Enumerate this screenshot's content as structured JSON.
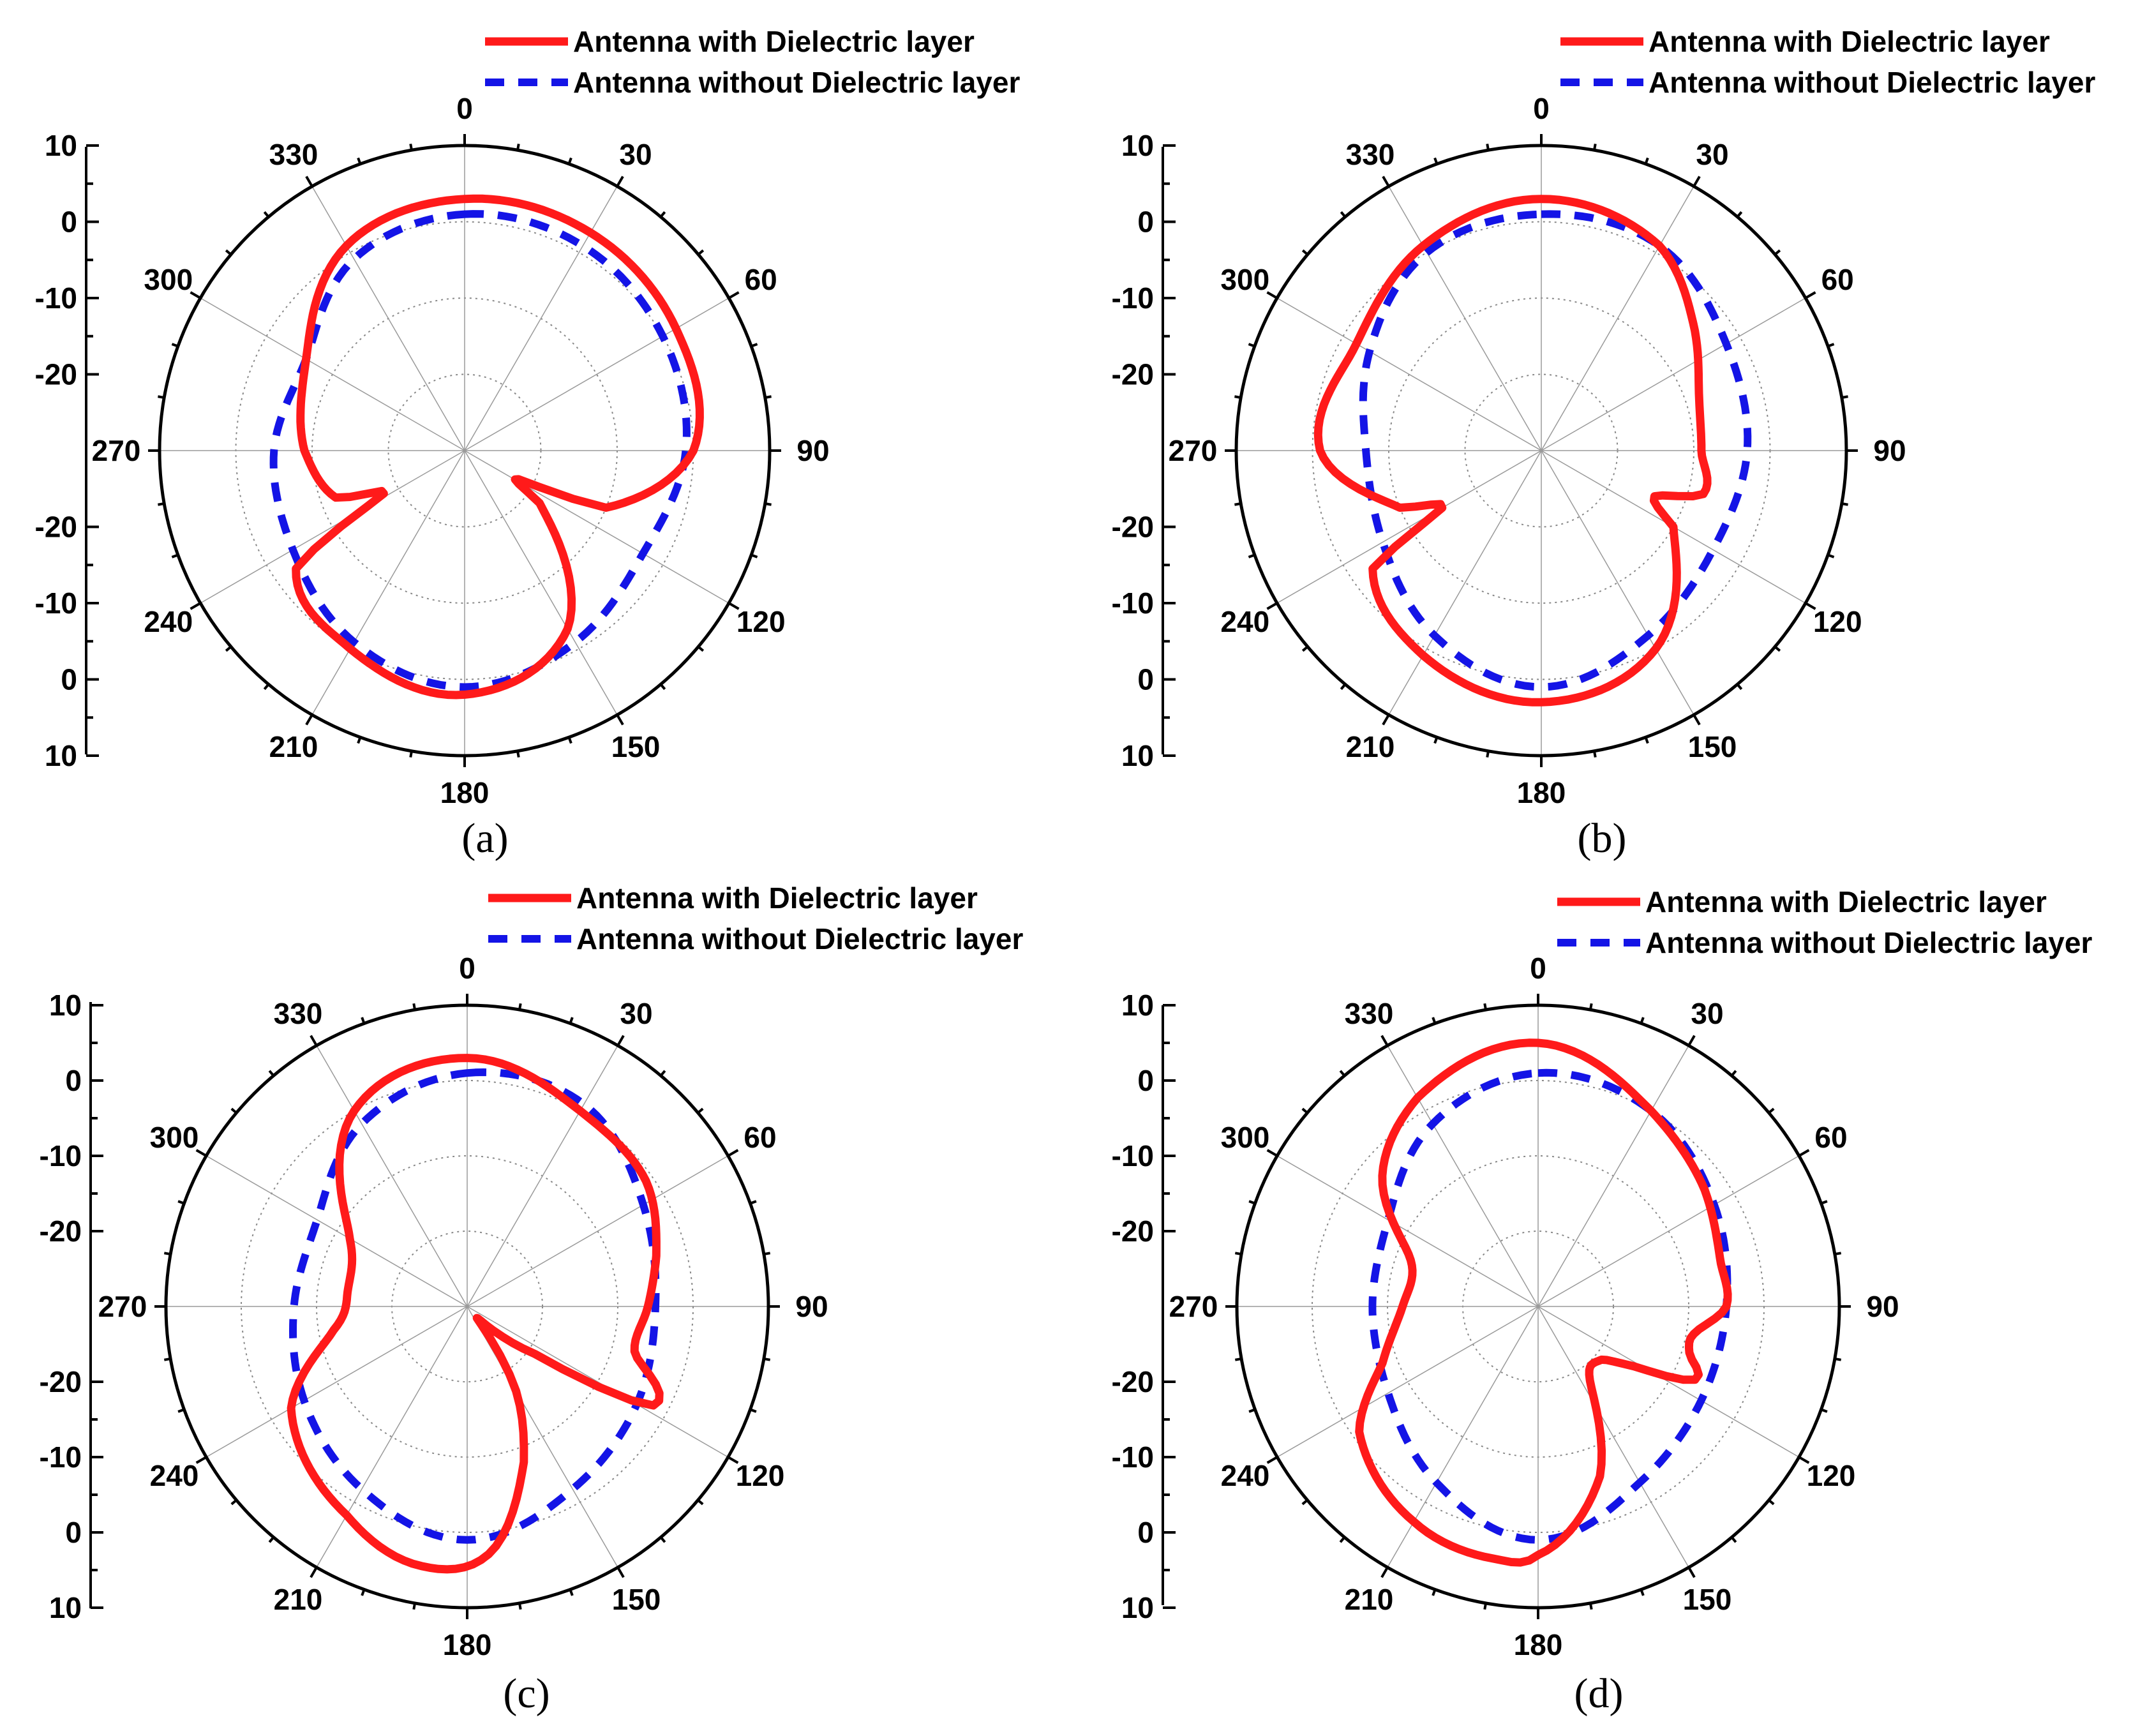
{
  "figure": {
    "legend": {
      "with": "Antenna with Dielectric layer",
      "without": "Antenna without Dielectric layer"
    },
    "colors": {
      "with": "#ff1a1a",
      "without": "#1414e6"
    }
  },
  "chart_data": [
    {
      "type": "polar-line",
      "panel_label": "(a)",
      "angle_ticks": [
        "0",
        "30",
        "60",
        "90",
        "120",
        "150",
        "180",
        "210",
        "240",
        "270",
        "300",
        "330"
      ],
      "radial_axis_labels": [
        "10",
        "0",
        "-10",
        "-20",
        "-20",
        "-10",
        "0",
        "10"
      ],
      "r_range": [
        -30,
        10
      ],
      "series": [
        {
          "name": "Antenna with Dielectric layer",
          "style": "solid",
          "angles": [
            0,
            30,
            60,
            90,
            112,
            118,
            125,
            150,
            180,
            210,
            235,
            242,
            250,
            270,
            300,
            330,
            360
          ],
          "values": [
            3,
            3,
            2,
            0,
            -10,
            -22,
            -18,
            -3,
            2,
            0,
            -3,
            -18,
            -12,
            -9,
            -6,
            1,
            3
          ]
        },
        {
          "name": "Antenna without Dielectric layer",
          "style": "dashed",
          "angles": [
            0,
            30,
            60,
            90,
            120,
            150,
            180,
            210,
            240,
            270,
            300,
            330,
            360
          ],
          "values": [
            1,
            1,
            0,
            -1,
            -3,
            -1,
            1,
            -1,
            -4,
            -5,
            -6,
            -1,
            1
          ]
        }
      ]
    },
    {
      "type": "polar-line",
      "panel_label": "(b)",
      "angle_ticks": [
        "0",
        "30",
        "60",
        "90",
        "120",
        "150",
        "180",
        "210",
        "240",
        "270",
        "300",
        "330"
      ],
      "radial_axis_labels": [
        "10",
        "0",
        "-10",
        "-20",
        "-20",
        "-10",
        "0",
        "10"
      ],
      "r_range": [
        -30,
        10
      ],
      "series": [
        {
          "name": "Antenna with Dielectric layer",
          "style": "solid",
          "angles": [
            0,
            30,
            50,
            70,
            90,
            105,
            112,
            120,
            150,
            180,
            210,
            235,
            240,
            248,
            270,
            300,
            330,
            360
          ],
          "values": [
            3,
            1,
            -4,
            -8,
            -9,
            -8,
            -14,
            -10,
            0,
            3,
            1,
            -3,
            -15,
            -10,
            -1,
            -2,
            1,
            3
          ]
        },
        {
          "name": "Antenna without Dielectric layer",
          "style": "dashed",
          "angles": [
            0,
            30,
            60,
            90,
            120,
            150,
            180,
            210,
            240,
            270,
            300,
            330,
            360
          ],
          "values": [
            1,
            1,
            -2,
            -3,
            -4,
            -2,
            1,
            -2,
            -6,
            -7,
            -4,
            0,
            1
          ]
        }
      ]
    },
    {
      "type": "polar-line",
      "panel_label": "(c)",
      "angle_ticks": [
        "0",
        "30",
        "60",
        "90",
        "120",
        "150",
        "180",
        "210",
        "240",
        "270",
        "300",
        "330"
      ],
      "radial_axis_labels": [
        "10",
        "0",
        "-10",
        "-20",
        "-20",
        "-10",
        "0",
        "10"
      ],
      "r_range": [
        -30,
        10
      ],
      "series": [
        {
          "name": "Antenna with Dielectric layer",
          "style": "solid",
          "angles": [
            0,
            30,
            55,
            75,
            90,
            105,
            118,
            125,
            140,
            150,
            160,
            175,
            190,
            210,
            240,
            260,
            275,
            300,
            330,
            360
          ],
          "values": [
            3,
            0,
            -1,
            -4,
            -6,
            -7,
            -2,
            -19,
            -28,
            -17,
            -8,
            3,
            5,
            2,
            -3,
            -12,
            -14,
            -12,
            0,
            3
          ]
        },
        {
          "name": "Antenna without Dielectric layer",
          "style": "dashed",
          "angles": [
            0,
            30,
            60,
            90,
            120,
            150,
            180,
            210,
            240,
            270,
            300,
            330,
            360
          ],
          "values": [
            1,
            1,
            -3,
            -5,
            -4,
            -2,
            1,
            -2,
            -5,
            -7,
            -7,
            -2,
            1
          ]
        }
      ]
    },
    {
      "type": "polar-line",
      "panel_label": "(d)",
      "angle_ticks": [
        "0",
        "30",
        "60",
        "90",
        "120",
        "150",
        "180",
        "210",
        "240",
        "270",
        "300",
        "330"
      ],
      "radial_axis_labels": [
        "10",
        "0",
        "-10",
        "-20",
        "-20",
        "-10",
        "0",
        "10"
      ],
      "r_range": [
        -30,
        10
      ],
      "series": [
        {
          "name": "Antenna with Dielectric layer",
          "style": "solid",
          "angles": [
            0,
            30,
            55,
            75,
            90,
            100,
            107,
            115,
            122,
            130,
            145,
            160,
            180,
            190,
            210,
            235,
            250,
            270,
            290,
            310,
            330,
            360
          ],
          "values": [
            5,
            0,
            -3,
            -5,
            -5,
            -9,
            -9,
            -7,
            -15,
            -19,
            -18,
            -6,
            3,
            4,
            3,
            -1,
            -8,
            -12,
            -12,
            -3,
            2,
            5
          ]
        },
        {
          "name": "Antenna without Dielectric layer",
          "style": "dashed",
          "angles": [
            0,
            30,
            60,
            90,
            120,
            150,
            180,
            210,
            240,
            270,
            300,
            330,
            360
          ],
          "values": [
            1,
            0,
            -3,
            -5,
            -5,
            -3,
            1,
            -3,
            -7,
            -8,
            -7,
            -2,
            1
          ]
        }
      ]
    }
  ]
}
